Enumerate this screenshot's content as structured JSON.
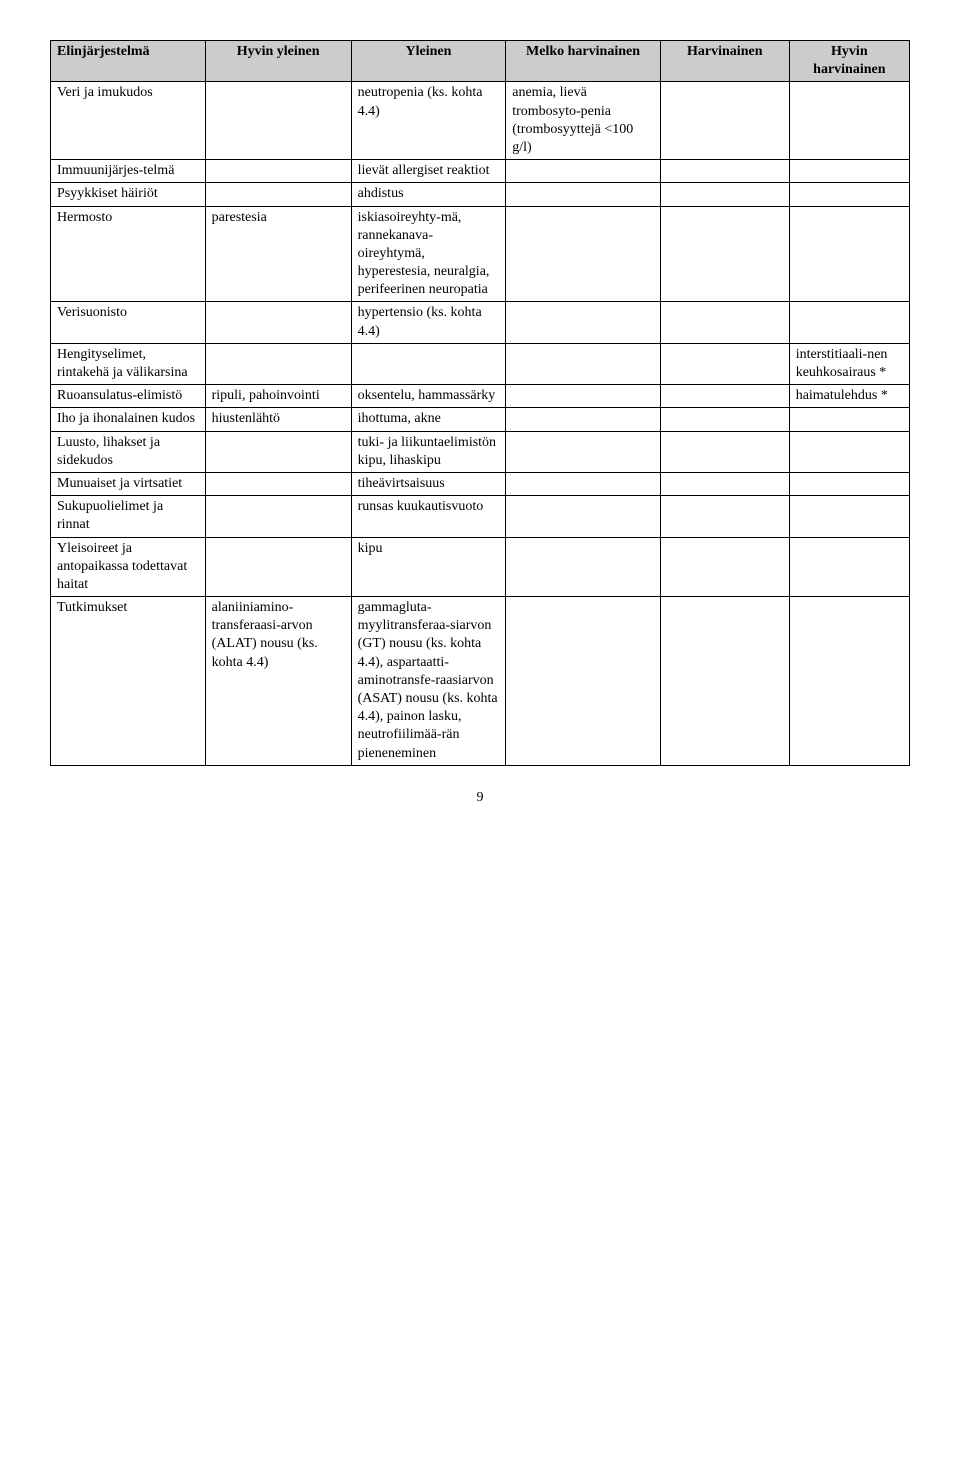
{
  "headers": [
    "Elinjärjestelmä",
    "Hyvin yleinen",
    "Yleinen",
    "Melko harvinainen",
    "Harvinainen",
    "Hyvin harvinainen"
  ],
  "rows": [
    {
      "c0": "Veri ja imukudos",
      "c1": "",
      "c2": "neutropenia (ks. kohta 4.4)",
      "c3": "anemia, lievä trombosyto-penia (trombosyyttejä <100 g/l)",
      "c4": "",
      "c5": ""
    },
    {
      "c0": "Immuunijärjes-telmä",
      "c1": "",
      "c2": "lievät allergiset reaktiot",
      "c3": "",
      "c4": "",
      "c5": ""
    },
    {
      "c0": "Psyykkiset häiriöt",
      "c1": "",
      "c2": "ahdistus",
      "c3": "",
      "c4": "",
      "c5": ""
    },
    {
      "c0": "Hermosto",
      "c1": "parestesia",
      "c2": "iskiasoireyhty-mä, rannekanava-oireyhtymä, hyperestesia, neuralgia, perifeerinen neuropatia",
      "c3": "",
      "c4": "",
      "c5": ""
    },
    {
      "c0": "Verisuonisto",
      "c1": "",
      "c2": "hypertensio (ks. kohta 4.4)",
      "c3": "",
      "c4": "",
      "c5": ""
    },
    {
      "c0": "Hengityselimet, rintakehä ja välikarsina",
      "c1": "",
      "c2": "",
      "c3": "",
      "c4": "",
      "c5": "interstitiaali-nen keuhkosairaus *"
    },
    {
      "c0": "Ruoansulatus-elimistö",
      "c1": "ripuli, pahoinvointi",
      "c2": "oksentelu, hammassärky",
      "c3": "",
      "c4": "",
      "c5": "haimatulehdus *"
    },
    {
      "c0": "Iho ja ihonalainen kudos",
      "c1": "hiustenlähtö",
      "c2": "ihottuma, akne",
      "c3": "",
      "c4": "",
      "c5": ""
    },
    {
      "c0": "Luusto, lihakset ja sidekudos",
      "c1": "",
      "c2": "tuki- ja liikuntaelimistön kipu, lihaskipu",
      "c3": "",
      "c4": "",
      "c5": ""
    },
    {
      "c0": "Munuaiset ja virtsatiet",
      "c1": "",
      "c2": "tiheävirtsaisuus",
      "c3": "",
      "c4": "",
      "c5": ""
    },
    {
      "c0": "Sukupuolielimet ja rinnat",
      "c1": "",
      "c2": "runsas kuukautisvuoto",
      "c3": "",
      "c4": "",
      "c5": ""
    },
    {
      "c0": "Yleisoireet ja antopaikassa todettavat haitat",
      "c1": "",
      "c2": "kipu",
      "c3": "",
      "c4": "",
      "c5": ""
    },
    {
      "c0": "Tutkimukset",
      "c1": "alaniiniamino-transferaasi-arvon (ALAT) nousu (ks. kohta 4.4)",
      "c2": "gammagluta-myylitransferaa-siarvon (GT) nousu (ks. kohta 4.4), aspartaatti-aminotransfe-raasiarvon (ASAT) nousu (ks. kohta 4.4), painon lasku, neutrofiilimää-rän pieneneminen",
      "c3": "",
      "c4": "",
      "c5": ""
    }
  ],
  "page_number": "9",
  "colors": {
    "header_bg": "#cccccc",
    "border": "#000000",
    "text": "#000000",
    "page_bg": "#ffffff"
  },
  "typography": {
    "font_family": "Times New Roman",
    "font_size_pt": 11
  }
}
